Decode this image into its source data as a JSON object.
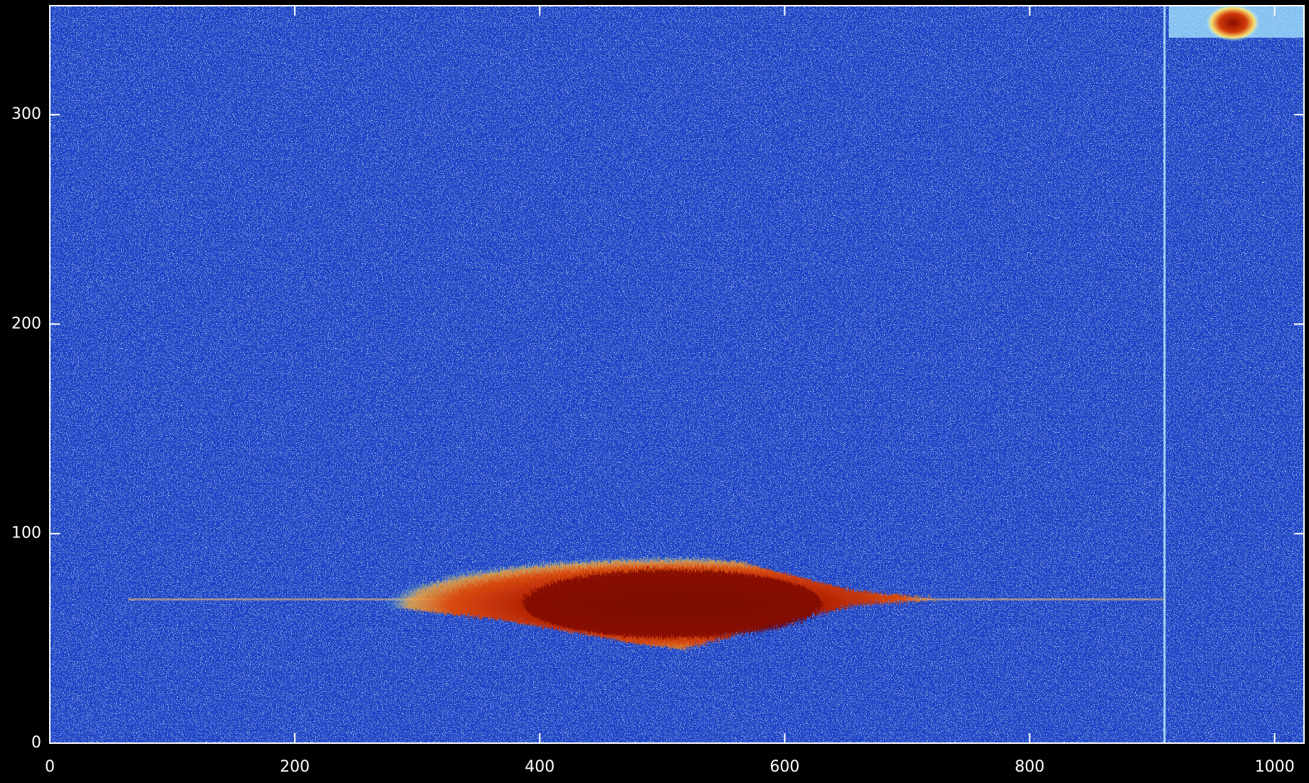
{
  "chart_data": {
    "type": "image",
    "xlim": [
      0,
      1024
    ],
    "ylim": [
      0,
      352
    ],
    "xticks": [
      0,
      200,
      400,
      600,
      800,
      1000
    ],
    "yticks": [
      0,
      100,
      200,
      300
    ],
    "color": "#1c3fc8"
  }
}
